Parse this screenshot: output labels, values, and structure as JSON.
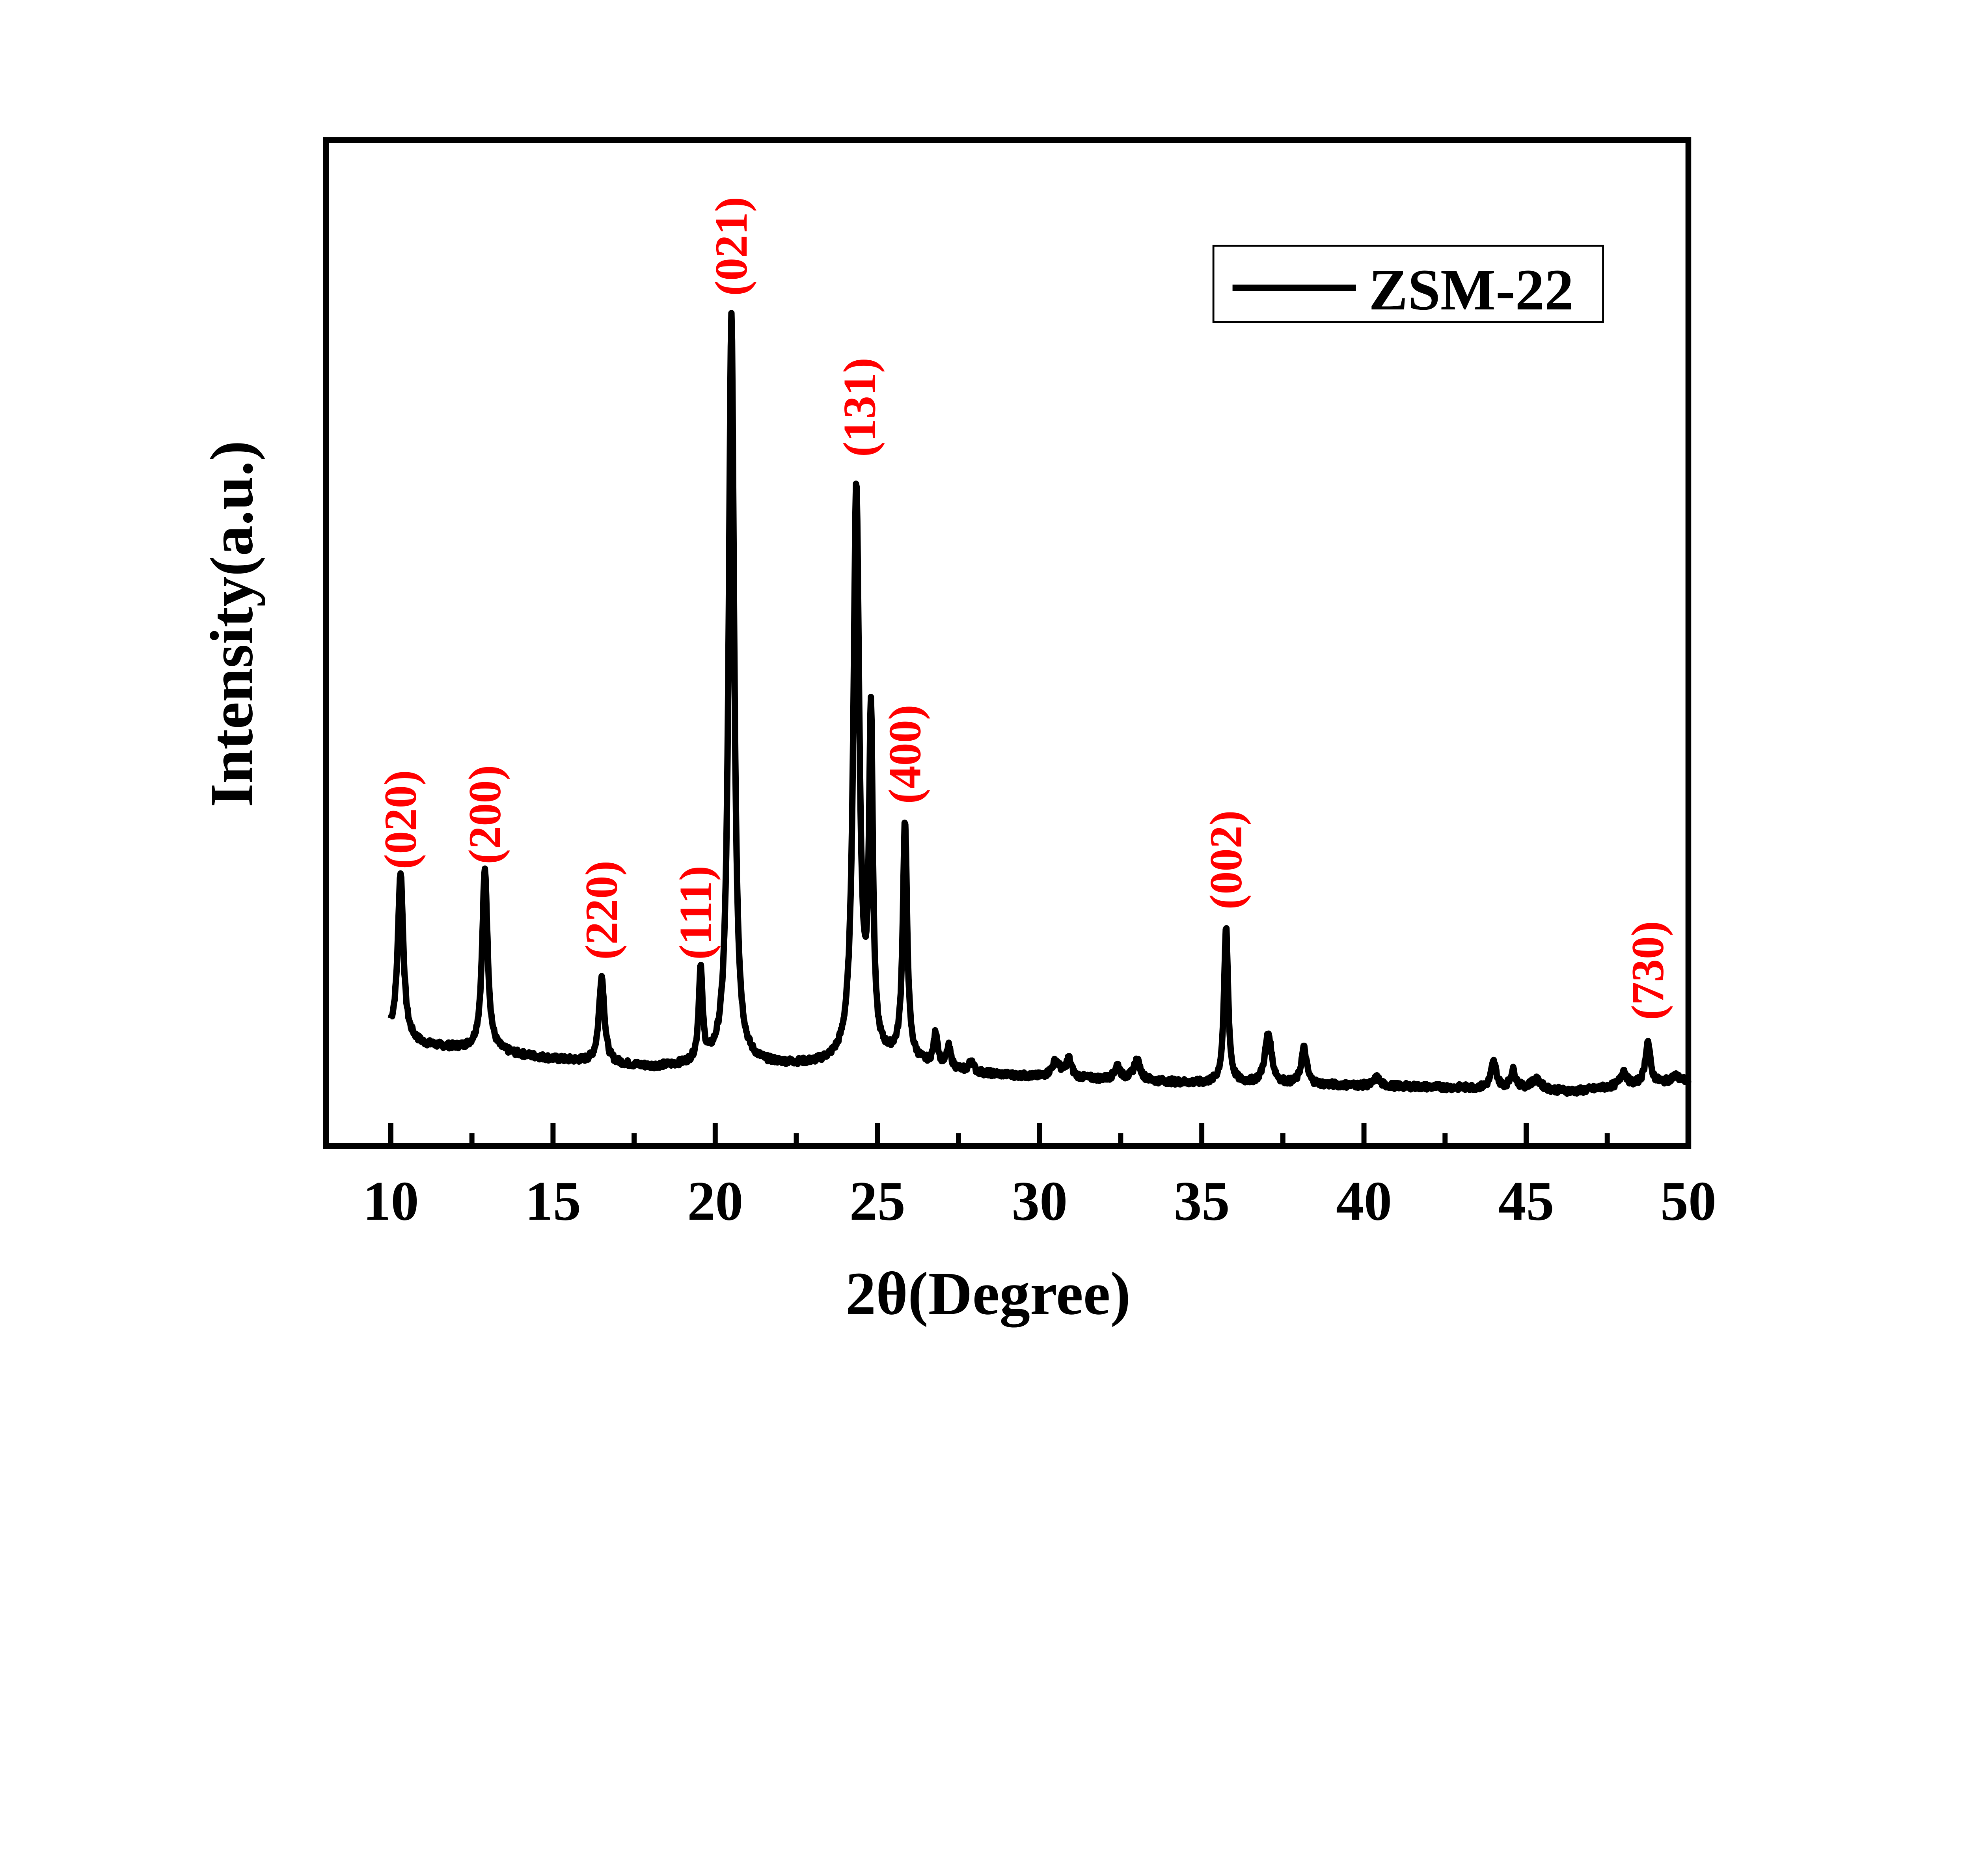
{
  "chart_data": {
    "type": "line",
    "title": "",
    "xlabel": "2θ(Degree)",
    "ylabel": "Intensity(a.u.)",
    "xlim": [
      8,
      50
    ],
    "ylim": [
      0,
      100
    ],
    "x_ticks": [
      10,
      15,
      20,
      25,
      30,
      35,
      40,
      45,
      50
    ],
    "x_tick_labels": [
      "10",
      "15",
      "20",
      "25",
      "30",
      "35",
      "40",
      "45",
      "50"
    ],
    "x_minor_ticks": [
      12.5,
      17.5,
      22.5,
      27.5,
      32.5,
      37.5,
      42.5,
      47.5
    ],
    "y_ticks_shown": false,
    "grid": false,
    "legend": {
      "position": "top-right",
      "entries": [
        "ZSM-22"
      ]
    },
    "series": [
      {
        "name": "ZSM-22",
        "color": "#000000",
        "x_range": [
          10,
          50
        ],
        "baseline": [
          [
            10,
            11
          ],
          [
            11,
            10
          ],
          [
            13,
            9.4
          ],
          [
            15,
            8.6
          ],
          [
            18,
            7.8
          ],
          [
            20,
            8
          ],
          [
            23,
            8
          ],
          [
            25.5,
            8.5
          ],
          [
            28,
            7.2
          ],
          [
            30,
            6.8
          ],
          [
            32,
            6.6
          ],
          [
            35,
            6.2
          ],
          [
            40,
            6.0
          ],
          [
            44,
            5.7
          ],
          [
            46.5,
            5.4
          ],
          [
            48,
            6.0
          ],
          [
            50,
            6.4
          ]
        ],
        "peaks": [
          {
            "x": 10.3,
            "amp": 16.5,
            "fwhm": 0.2
          },
          {
            "x": 12.9,
            "amp": 18.0,
            "fwhm": 0.2
          },
          {
            "x": 16.5,
            "amp": 8.6,
            "fwhm": 0.2
          },
          {
            "x": 19.55,
            "amp": 9.2,
            "fwhm": 0.14
          },
          {
            "x": 20.5,
            "amp": 74.5,
            "fwhm": 0.2
          },
          {
            "x": 24.35,
            "amp": 57.0,
            "fwhm": 0.22
          },
          {
            "x": 24.8,
            "amp": 33.0,
            "fwhm": 0.14
          },
          {
            "x": 25.85,
            "amp": 23.5,
            "fwhm": 0.16
          },
          {
            "x": 26.8,
            "amp": 3.2,
            "fwhm": 0.15
          },
          {
            "x": 27.2,
            "amp": 2.0,
            "fwhm": 0.15
          },
          {
            "x": 27.9,
            "amp": 1.2,
            "fwhm": 0.15
          },
          {
            "x": 30.5,
            "amp": 1.6,
            "fwhm": 0.3
          },
          {
            "x": 30.9,
            "amp": 1.8,
            "fwhm": 0.2
          },
          {
            "x": 32.4,
            "amp": 1.4,
            "fwhm": 0.2
          },
          {
            "x": 33.0,
            "amp": 2.0,
            "fwhm": 0.25
          },
          {
            "x": 35.75,
            "amp": 15.5,
            "fwhm": 0.15
          },
          {
            "x": 37.05,
            "amp": 5.0,
            "fwhm": 0.25
          },
          {
            "x": 38.15,
            "amp": 3.6,
            "fwhm": 0.2
          },
          {
            "x": 40.4,
            "amp": 0.8,
            "fwhm": 0.2
          },
          {
            "x": 44.0,
            "amp": 2.6,
            "fwhm": 0.2
          },
          {
            "x": 44.6,
            "amp": 1.8,
            "fwhm": 0.2
          },
          {
            "x": 45.3,
            "amp": 1.0,
            "fwhm": 0.4
          },
          {
            "x": 48.0,
            "amp": 1.5,
            "fwhm": 0.2
          },
          {
            "x": 48.75,
            "amp": 4.2,
            "fwhm": 0.18
          },
          {
            "x": 49.6,
            "amp": 0.6,
            "fwhm": 0.3
          }
        ]
      }
    ],
    "annotations": [
      {
        "text": "(020)",
        "x": 10.3,
        "y": 27.5
      },
      {
        "text": "(200)",
        "x": 12.9,
        "y": 28
      },
      {
        "text": "(220)",
        "x": 16.5,
        "y": 18.5
      },
      {
        "text": "(111)",
        "x": 19.4,
        "y": 18.5
      },
      {
        "text": "(021)",
        "x": 20.5,
        "y": 84.5
      },
      {
        "text": "(131)",
        "x": 24.45,
        "y": 68.5
      },
      {
        "text": "(400)",
        "x": 25.85,
        "y": 34
      },
      {
        "text": "(002)",
        "x": 35.75,
        "y": 23.5
      },
      {
        "text": "(730)",
        "x": 48.75,
        "y": 12.5
      }
    ]
  }
}
